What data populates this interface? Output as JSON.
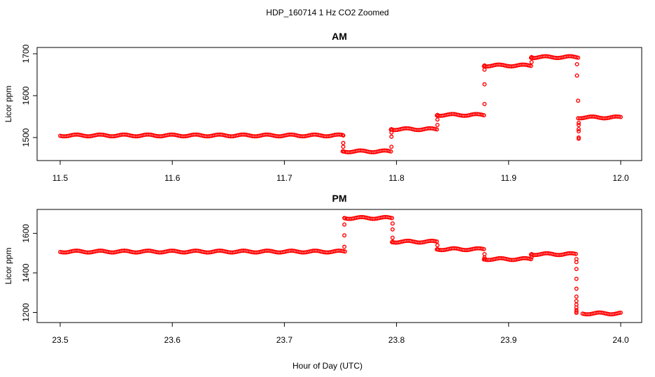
{
  "title": "HDP_160714  1 Hz CO2 Zoomed",
  "xlabel": "Hour of Day (UTC)",
  "series_color": "#ff0000",
  "chart_data": [
    {
      "type": "scatter",
      "title": "AM",
      "ylabel": "Licor ppm",
      "xlim": [
        11.5,
        12.0
      ],
      "ylim": [
        1455,
        1705
      ],
      "xticks": [
        "11.5",
        "11.6",
        "11.7",
        "11.8",
        "11.9",
        "12.0"
      ],
      "yticks": [
        "1500",
        "1600",
        "1700"
      ],
      "segments": [
        {
          "x": [
            11.5,
            11.752
          ],
          "y": 1505
        },
        {
          "x": [
            11.752,
            11.795
          ],
          "y": 1467
        },
        {
          "x": [
            11.795,
            11.836
          ],
          "y": 1520
        },
        {
          "x": [
            11.836,
            11.878
          ],
          "y": 1554
        },
        {
          "x": [
            11.878,
            11.92
          ],
          "y": 1672
        },
        {
          "x": [
            11.92,
            11.962
          ],
          "y": 1692
        },
        {
          "x": [
            11.962,
            12.0
          ],
          "y": 1548
        }
      ],
      "transitions": [
        {
          "x": 11.7525,
          "y": [
            1505,
            1487,
            1478,
            1467
          ]
        },
        {
          "x": 11.7955,
          "y": [
            1478,
            1502,
            1512,
            1520
          ]
        },
        {
          "x": 11.8365,
          "y": [
            1530,
            1543,
            1554
          ]
        },
        {
          "x": 11.8785,
          "y": [
            1580,
            1627,
            1662,
            1672
          ]
        },
        {
          "x": 11.9205,
          "y": [
            1680,
            1692
          ]
        },
        {
          "x": 11.961,
          "y": [
            1675,
            1648
          ]
        },
        {
          "x": 11.962,
          "y": [
            1588
          ]
        },
        {
          "x": 11.9625,
          "y": [
            1530,
            1515,
            1500,
            1497,
            1520,
            1535
          ]
        }
      ]
    },
    {
      "type": "scatter",
      "title": "PM",
      "ylabel": "Licor ppm",
      "xlim": [
        23.5,
        24.0
      ],
      "ylim": [
        1170,
        1700
      ],
      "xticks": [
        "23.5",
        "23.6",
        "23.7",
        "23.8",
        "23.9",
        "24.0"
      ],
      "yticks": [
        "1200",
        "1400",
        "1600"
      ],
      "segments": [
        {
          "x": [
            23.5,
            23.754
          ],
          "y": 1508
        },
        {
          "x": [
            23.754,
            23.796
          ],
          "y": 1678
        },
        {
          "x": [
            23.796,
            23.836
          ],
          "y": 1558
        },
        {
          "x": [
            23.836,
            23.878
          ],
          "y": 1520
        },
        {
          "x": [
            23.878,
            23.92
          ],
          "y": 1470
        },
        {
          "x": [
            23.92,
            23.96
          ],
          "y": 1495
        },
        {
          "x": [
            23.966,
            24.0
          ],
          "y": 1195
        }
      ],
      "transitions": [
        {
          "x": 23.7535,
          "y": [
            1532,
            1590,
            1645,
            1678
          ]
        },
        {
          "x": 23.7965,
          "y": [
            1650,
            1620,
            1578,
            1558
          ]
        },
        {
          "x": 23.8365,
          "y": [
            1540,
            1520
          ]
        },
        {
          "x": 23.8785,
          "y": [
            1495,
            1478,
            1470
          ]
        },
        {
          "x": 23.9205,
          "y": [
            1480,
            1495
          ]
        },
        {
          "x": 23.9605,
          "y": [
            1470,
            1455,
            1420,
            1370,
            1320,
            1280,
            1258,
            1240,
            1225,
            1212,
            1205,
            1198
          ]
        }
      ]
    }
  ]
}
